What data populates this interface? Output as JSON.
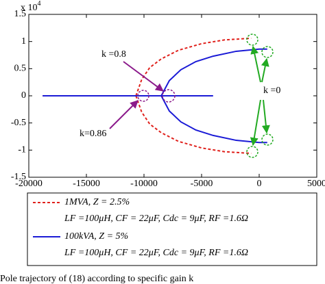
{
  "chart_data": {
    "type": "line",
    "xlim": [
      -20000,
      5000
    ],
    "xticks": [
      -20000,
      -15000,
      -10000,
      -5000,
      0,
      5000
    ],
    "ylim": [
      -1.5,
      1.5
    ],
    "yticks": [
      1.5,
      1,
      0.5,
      0,
      -0.5,
      -1,
      -1.5
    ],
    "y_multiplier": "x 10",
    "y_multiplier_exponent": "4",
    "series": [
      {
        "name": "1MVA, Z = 2.5%",
        "detail": "LF =100μH, CF = 22μF, Cdc = 9μF, RF =1.6Ω",
        "color": "#e0201b",
        "dash": true,
        "x": [
          -18800,
          -10700,
          null,
          -10700,
          -10200,
          -9500,
          -8500,
          -7000,
          -5000,
          -3000,
          -700,
          null,
          -10700,
          -10200,
          -9500,
          -8500,
          -7000,
          -5000,
          -3000,
          -700
        ],
        "values": [
          0,
          0,
          null,
          0,
          0.3,
          0.52,
          0.68,
          0.84,
          0.96,
          1.03,
          1.06,
          null,
          0,
          -0.3,
          -0.52,
          -0.68,
          -0.84,
          -0.96,
          -1.03,
          -1.06
        ]
      },
      {
        "name": "100kVA, Z = 5%",
        "detail": "LF =100μH, CF = 22μF, Cdc = 9μF, RF =1.6Ω",
        "color": "#1a1ad6",
        "dash": false,
        "x": [
          -18800,
          -4000,
          null,
          -8500,
          -7800,
          -6800,
          -5500,
          -4000,
          -2000,
          0,
          700,
          null,
          -8500,
          -7800,
          -6800,
          -5500,
          -4000,
          -2000,
          0,
          700
        ],
        "values": [
          0,
          0,
          null,
          0,
          0.28,
          0.48,
          0.63,
          0.73,
          0.82,
          0.86,
          0.86,
          null,
          0,
          -0.28,
          -0.48,
          -0.63,
          -0.73,
          -0.82,
          -0.86,
          -0.86
        ]
      }
    ],
    "annotations": [
      "k =0.8",
      "k =0",
      "k=0.86"
    ],
    "caption": "Pole trajectory of (18) according to specific gain  k",
    "grid": false
  }
}
